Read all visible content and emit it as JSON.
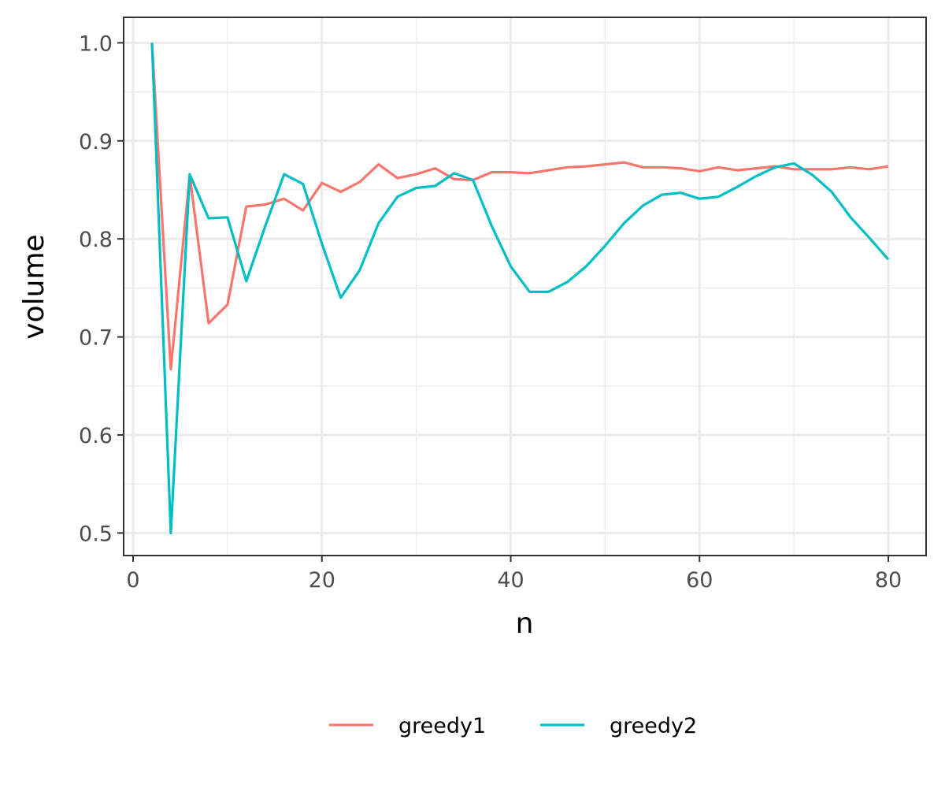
{
  "chart_data": {
    "type": "line",
    "title": "",
    "xlabel": "n",
    "ylabel": "volume",
    "xlim": [
      -1,
      84
    ],
    "ylim": [
      0.477,
      1.026
    ],
    "x_ticks": [
      0,
      20,
      40,
      60,
      80
    ],
    "x_tick_labels": [
      "0",
      "20",
      "40",
      "60",
      "80"
    ],
    "x_minor_ticks": [
      10,
      30,
      50,
      70
    ],
    "y_ticks": [
      0.5,
      0.6,
      0.7,
      0.8,
      0.9,
      1.0
    ],
    "y_tick_labels": [
      "0.5",
      "0.6",
      "0.7",
      "0.8",
      "0.9",
      "1.0"
    ],
    "y_minor_ticks": [
      0.55,
      0.65,
      0.75,
      0.85,
      0.95
    ],
    "grid": true,
    "legend_position": "bottom",
    "x": [
      2,
      4,
      6,
      8,
      10,
      12,
      14,
      16,
      18,
      20,
      22,
      24,
      26,
      28,
      30,
      32,
      34,
      36,
      38,
      40,
      42,
      44,
      46,
      48,
      50,
      52,
      54,
      56,
      58,
      60,
      62,
      64,
      66,
      68,
      70,
      72,
      74,
      76,
      78,
      80
    ],
    "series": [
      {
        "name": "greedy1",
        "color": "#F8766D",
        "values": [
          1.0,
          0.667,
          0.865,
          0.714,
          0.733,
          0.833,
          0.835,
          0.841,
          0.829,
          0.857,
          0.848,
          0.858,
          0.876,
          0.862,
          0.866,
          0.872,
          0.861,
          0.86,
          0.868,
          0.868,
          0.867,
          0.87,
          0.873,
          0.874,
          0.876,
          0.878,
          0.873,
          0.873,
          0.872,
          0.869,
          0.873,
          0.87,
          0.872,
          0.874,
          0.871,
          0.871,
          0.871,
          0.873,
          0.871,
          0.874
        ]
      },
      {
        "name": "greedy2",
        "color": "#00BFC4",
        "values": [
          1.0,
          0.5,
          0.866,
          0.821,
          0.822,
          0.757,
          0.813,
          0.866,
          0.856,
          0.795,
          0.74,
          0.768,
          0.816,
          0.843,
          0.852,
          0.854,
          0.867,
          0.86,
          0.813,
          0.772,
          0.746,
          0.746,
          0.756,
          0.772,
          0.793,
          0.816,
          0.834,
          0.845,
          0.847,
          0.841,
          0.843,
          0.853,
          0.864,
          0.873,
          0.877,
          0.865,
          0.848,
          0.822,
          0.801,
          0.779
        ]
      }
    ]
  }
}
